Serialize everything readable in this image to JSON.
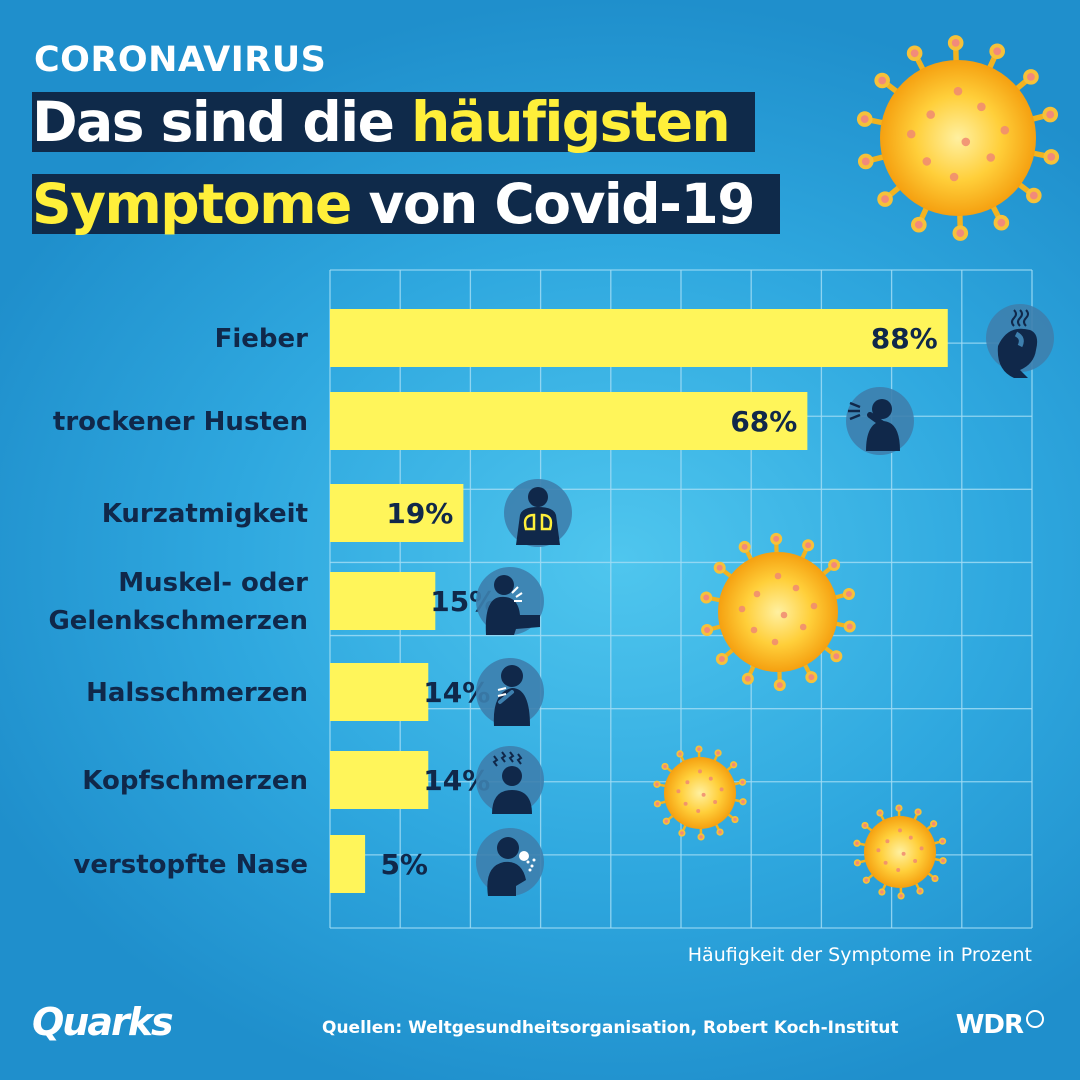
{
  "kicker": "CORONAVIRUS",
  "title": {
    "line1": [
      {
        "text": "Das sind die ",
        "hl": false
      },
      {
        "text": "häufigsten",
        "hl": true
      }
    ],
    "line2": [
      {
        "text": "Symptome",
        "hl": true
      },
      {
        "text": " von Covid-19",
        "hl": false
      }
    ]
  },
  "colors": {
    "bar": "#fff55a",
    "navy": "#10284a",
    "accent_yellow": "#ffef3a",
    "grid": "#9fdcf5"
  },
  "chart_data": {
    "type": "bar",
    "orientation": "horizontal",
    "categories": [
      [
        "Fieber"
      ],
      [
        "trockener Husten"
      ],
      [
        "Kurzatmigkeit"
      ],
      [
        "Muskel- oder",
        "Gelenkschmerzen"
      ],
      [
        "Halsschmerzen"
      ],
      [
        "Kopfschmerzen"
      ],
      [
        "verstopfte Nase"
      ]
    ],
    "values": [
      88,
      68,
      19,
      15,
      14,
      14,
      5
    ],
    "value_labels": [
      "88%",
      "68%",
      "19%",
      "15%",
      "14%",
      "14%",
      "5%"
    ],
    "icons": [
      "fever-icon",
      "cough-icon",
      "lungs-icon",
      "joint-pain-icon",
      "sore-throat-icon",
      "headache-icon",
      "sneeze-icon"
    ],
    "xlim": [
      0,
      100
    ],
    "xlabel": "Häufigkeit der Symptome in Prozent",
    "grid": true
  },
  "caption": "Häufigkeit der Symptome in Prozent",
  "footer": {
    "logo": "Quarks",
    "sources": "Quellen: Weltgesundheitsorganisation, Robert Koch-Institut",
    "broadcaster": "WDR"
  }
}
